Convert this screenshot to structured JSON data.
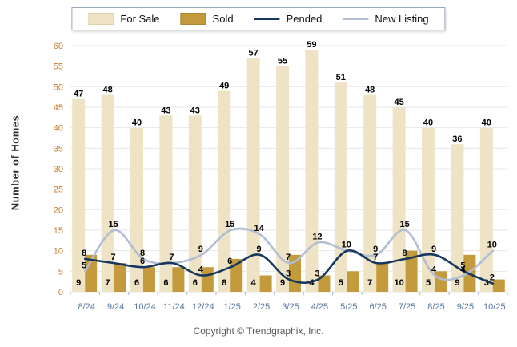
{
  "axes": {
    "y_title": "Number of Homes"
  },
  "footer": {
    "copyright": "Copyright © Trendgraphix, Inc."
  },
  "chart_data": {
    "type": "bar+line combo",
    "title": "",
    "ylabel": "Number of Homes",
    "xlabel": "",
    "ylim": [
      0,
      60
    ],
    "ytick_step": 5,
    "grid": true,
    "legend_position": "top-center",
    "categories": [
      "8/24",
      "9/24",
      "10/24",
      "11/24",
      "12/24",
      "1/25",
      "2/25",
      "3/25",
      "4/25",
      "5/25",
      "6/25",
      "7/25",
      "8/25",
      "9/25",
      "10/25"
    ],
    "series": [
      {
        "name": "For Sale",
        "type": "bar",
        "color": "#EFE3C6",
        "border": "#DFD0AC",
        "values": [
          47,
          48,
          40,
          43,
          43,
          49,
          57,
          55,
          59,
          51,
          48,
          45,
          40,
          36,
          40
        ]
      },
      {
        "name": "Sold",
        "type": "bar",
        "color": "#C49B3C",
        "border": "#AB852F",
        "values": [
          9,
          7,
          6,
          6,
          6,
          8,
          4,
          9,
          4,
          5,
          7,
          10,
          5,
          9,
          3
        ]
      },
      {
        "name": "Pended",
        "type": "line",
        "color": "#17375E",
        "values": [
          8,
          7,
          6,
          7,
          4,
          6,
          9,
          3,
          3,
          10,
          7,
          8,
          9,
          5,
          2
        ]
      },
      {
        "name": "New Listing",
        "type": "line",
        "color": "#B0BDD3",
        "values": [
          5,
          15,
          8,
          7,
          9,
          15,
          14,
          7,
          12,
          10,
          9,
          15,
          4,
          4,
          10
        ]
      }
    ],
    "style": {
      "y_tick_color": "#C67B2E",
      "x_tick_color": "#56789E",
      "grid_color": "#E7E7E7",
      "axis_tick_color": "#A8B6C6",
      "data_label_color": "#000000"
    }
  }
}
